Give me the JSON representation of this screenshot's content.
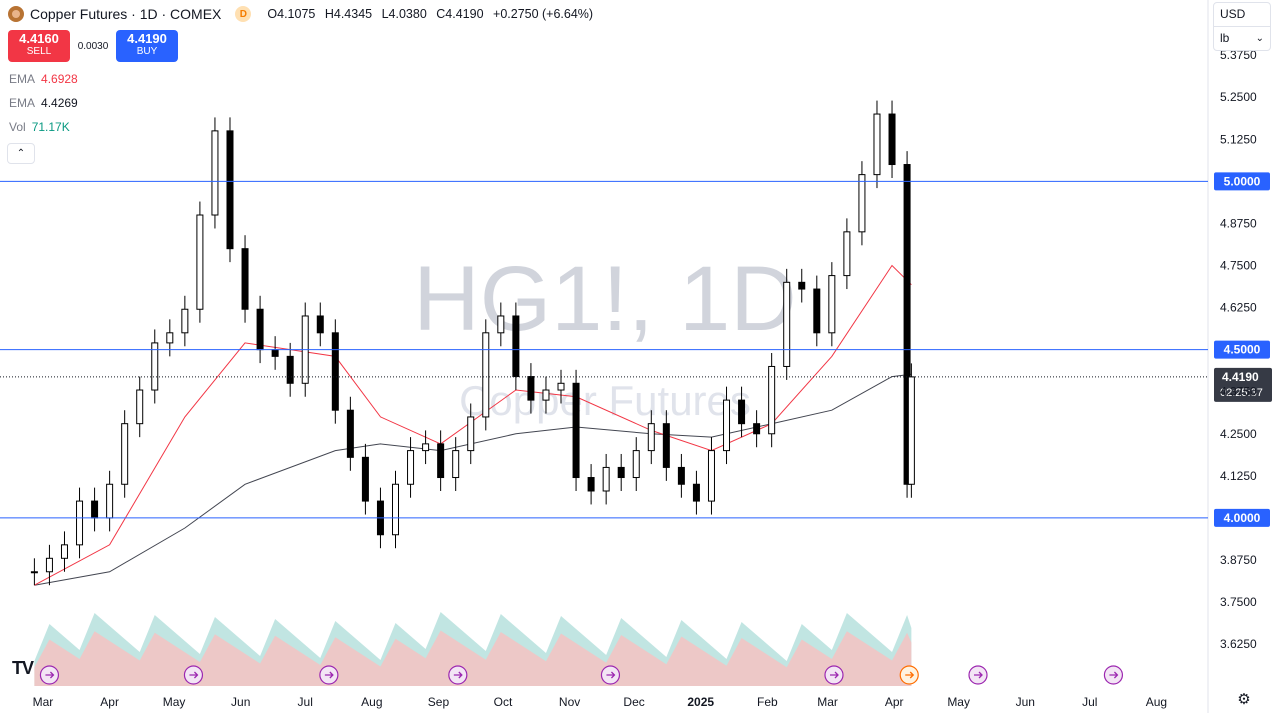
{
  "header": {
    "title": "Copper Futures · 1D · COMEX",
    "data_badge": "D",
    "ohlc": {
      "o_label": "O",
      "o": "4.1075",
      "h_label": "H",
      "h": "4.4345",
      "l_label": "L",
      "l": "4.0380",
      "c_label": "C",
      "c": "4.4190",
      "change": "+0.2750 (+6.64%)"
    }
  },
  "trade": {
    "sell_price": "4.4160",
    "sell_label": "SELL",
    "spread": "0.0030",
    "buy_price": "4.4190",
    "buy_label": "BUY"
  },
  "indicators": [
    {
      "name": "EMA",
      "value": "4.6928",
      "color": "#f23645"
    },
    {
      "name": "EMA",
      "value": "4.4269",
      "color": "#131722"
    },
    {
      "name": "Vol",
      "value": "71.17K",
      "color": "#089981"
    }
  ],
  "top_right": {
    "currency": "USD",
    "unit": "lb"
  },
  "watermark": {
    "symbol": "HG1!, 1D",
    "name": "Copper Futures"
  },
  "colors": {
    "up": "#26a69a",
    "down": "#ef5350",
    "ema_fast": "#f23645",
    "ema_slow": "#434651",
    "hline": "#2962ff",
    "candle": "#000000"
  },
  "chart_data": {
    "type": "candlestick",
    "title": "Copper Futures · 1D · COMEX",
    "ylim": [
      3.56,
      5.42
    ],
    "y_ticks": [
      "5.3750",
      "5.2500",
      "5.1250",
      "4.8750",
      "4.7500",
      "4.6250",
      "4.3750",
      "4.2500",
      "4.1250",
      "3.8750",
      "3.7500",
      "3.6250"
    ],
    "x_ticks": [
      "Mar",
      "Apr",
      "May",
      "Jun",
      "Jul",
      "Aug",
      "Sep",
      "Oct",
      "Nov",
      "Dec",
      "2025",
      "Feb",
      "Mar",
      "Apr",
      "May",
      "Jun",
      "Jul",
      "Aug"
    ],
    "price_series": [
      {
        "date": "2024-02-26",
        "close": 3.84
      },
      {
        "date": "2024-03-04",
        "close": 3.88
      },
      {
        "date": "2024-03-11",
        "close": 3.92
      },
      {
        "date": "2024-03-18",
        "close": 4.05
      },
      {
        "date": "2024-03-25",
        "close": 4.0
      },
      {
        "date": "2024-04-01",
        "close": 4.1
      },
      {
        "date": "2024-04-08",
        "close": 4.28
      },
      {
        "date": "2024-04-15",
        "close": 4.38
      },
      {
        "date": "2024-04-22",
        "close": 4.52
      },
      {
        "date": "2024-04-29",
        "close": 4.55
      },
      {
        "date": "2024-05-06",
        "close": 4.62
      },
      {
        "date": "2024-05-13",
        "close": 4.9
      },
      {
        "date": "2024-05-20",
        "close": 5.15
      },
      {
        "date": "2024-05-27",
        "close": 4.8
      },
      {
        "date": "2024-06-03",
        "close": 4.62
      },
      {
        "date": "2024-06-10",
        "close": 4.5
      },
      {
        "date": "2024-06-17",
        "close": 4.48
      },
      {
        "date": "2024-06-24",
        "close": 4.4
      },
      {
        "date": "2024-07-01",
        "close": 4.6
      },
      {
        "date": "2024-07-08",
        "close": 4.55
      },
      {
        "date": "2024-07-15",
        "close": 4.32
      },
      {
        "date": "2024-07-22",
        "close": 4.18
      },
      {
        "date": "2024-07-29",
        "close": 4.05
      },
      {
        "date": "2024-08-05",
        "close": 3.95
      },
      {
        "date": "2024-08-12",
        "close": 4.1
      },
      {
        "date": "2024-08-19",
        "close": 4.2
      },
      {
        "date": "2024-08-26",
        "close": 4.22
      },
      {
        "date": "2024-09-02",
        "close": 4.12
      },
      {
        "date": "2024-09-09",
        "close": 4.2
      },
      {
        "date": "2024-09-16",
        "close": 4.3
      },
      {
        "date": "2024-09-23",
        "close": 4.55
      },
      {
        "date": "2024-09-30",
        "close": 4.6
      },
      {
        "date": "2024-10-07",
        "close": 4.42
      },
      {
        "date": "2024-10-14",
        "close": 4.35
      },
      {
        "date": "2024-10-21",
        "close": 4.38
      },
      {
        "date": "2024-10-28",
        "close": 4.4
      },
      {
        "date": "2024-11-04",
        "close": 4.12
      },
      {
        "date": "2024-11-11",
        "close": 4.08
      },
      {
        "date": "2024-11-18",
        "close": 4.15
      },
      {
        "date": "2024-11-25",
        "close": 4.12
      },
      {
        "date": "2024-12-02",
        "close": 4.2
      },
      {
        "date": "2024-12-09",
        "close": 4.28
      },
      {
        "date": "2024-12-16",
        "close": 4.15
      },
      {
        "date": "2024-12-23",
        "close": 4.1
      },
      {
        "date": "2024-12-30",
        "close": 4.05
      },
      {
        "date": "2025-01-06",
        "close": 4.2
      },
      {
        "date": "2025-01-13",
        "close": 4.35
      },
      {
        "date": "2025-01-20",
        "close": 4.28
      },
      {
        "date": "2025-01-27",
        "close": 4.25
      },
      {
        "date": "2025-02-03",
        "close": 4.45
      },
      {
        "date": "2025-02-10",
        "close": 4.7
      },
      {
        "date": "2025-02-17",
        "close": 4.68
      },
      {
        "date": "2025-02-24",
        "close": 4.55
      },
      {
        "date": "2025-03-03",
        "close": 4.72
      },
      {
        "date": "2025-03-10",
        "close": 4.85
      },
      {
        "date": "2025-03-17",
        "close": 5.02
      },
      {
        "date": "2025-03-24",
        "close": 5.2
      },
      {
        "date": "2025-03-31",
        "close": 5.05
      },
      {
        "date": "2025-04-07",
        "close": 4.1
      },
      {
        "date": "2025-04-09",
        "close": 4.419
      }
    ],
    "ema_fast": [
      {
        "date": "2024-02-26",
        "value": 3.8
      },
      {
        "date": "2024-04-01",
        "value": 3.92
      },
      {
        "date": "2024-05-06",
        "value": 4.3
      },
      {
        "date": "2024-06-03",
        "value": 4.52
      },
      {
        "date": "2024-06-24",
        "value": 4.5
      },
      {
        "date": "2024-07-15",
        "value": 4.48
      },
      {
        "date": "2024-08-05",
        "value": 4.3
      },
      {
        "date": "2024-09-02",
        "value": 4.22
      },
      {
        "date": "2024-10-07",
        "value": 4.38
      },
      {
        "date": "2024-11-04",
        "value": 4.36
      },
      {
        "date": "2024-12-09",
        "value": 4.26
      },
      {
        "date": "2025-01-06",
        "value": 4.2
      },
      {
        "date": "2025-02-03",
        "value": 4.28
      },
      {
        "date": "2025-03-03",
        "value": 4.48
      },
      {
        "date": "2025-03-31",
        "value": 4.75
      },
      {
        "date": "2025-04-09",
        "value": 4.6928
      }
    ],
    "ema_slow": [
      {
        "date": "2024-02-26",
        "value": 3.8
      },
      {
        "date": "2024-04-01",
        "value": 3.84
      },
      {
        "date": "2024-05-06",
        "value": 3.97
      },
      {
        "date": "2024-06-03",
        "value": 4.1
      },
      {
        "date": "2024-07-15",
        "value": 4.2
      },
      {
        "date": "2024-08-05",
        "value": 4.22
      },
      {
        "date": "2024-09-02",
        "value": 4.2
      },
      {
        "date": "2024-10-07",
        "value": 4.25
      },
      {
        "date": "2024-11-04",
        "value": 4.27
      },
      {
        "date": "2024-12-09",
        "value": 4.25
      },
      {
        "date": "2025-01-06",
        "value": 4.24
      },
      {
        "date": "2025-02-03",
        "value": 4.28
      },
      {
        "date": "2025-03-03",
        "value": 4.32
      },
      {
        "date": "2025-03-31",
        "value": 4.42
      },
      {
        "date": "2025-04-09",
        "value": 4.4269
      }
    ],
    "volume_last": "71.17K",
    "horizontal_levels": [
      "5.0000",
      "4.5000",
      "4.0000"
    ],
    "last_price": {
      "value": "4.4190",
      "countdown": "02:25:37"
    },
    "event_markers": [
      "Mar",
      "May",
      "Jul",
      "Sep",
      "Dec",
      "Mar",
      "Apr",
      "Apr",
      "Jul"
    ]
  }
}
